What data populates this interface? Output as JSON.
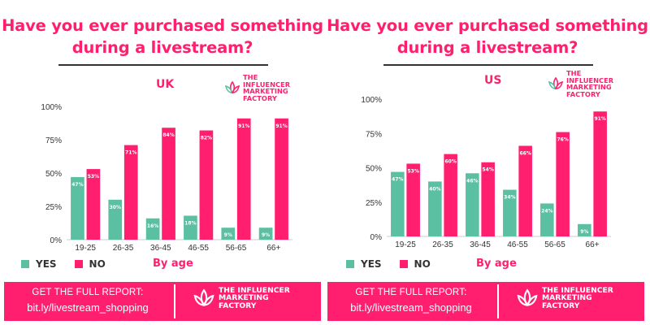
{
  "colors": {
    "yes": "#5bbfa1",
    "no": "#ff1f6e",
    "accent": "#ff1f6e",
    "axis": "#cccccc",
    "text": "#333333"
  },
  "brand": {
    "name": "THE INFLUENCER MARKETING FACTORY",
    "icon": "lotus-logo-icon"
  },
  "legend": {
    "yes": "YES",
    "no": "NO",
    "by_age": "By age"
  },
  "footer": {
    "cta": "GET THE FULL REPORT:",
    "link": "bit.ly/livestream_shopping"
  },
  "chart_data": [
    {
      "type": "bar",
      "title": "Have you ever purchased something during a livestream?",
      "subtitle": "UK",
      "categories": [
        "19-25",
        "26-35",
        "36-45",
        "46-55",
        "56-65",
        "66+"
      ],
      "series": [
        {
          "name": "YES",
          "values": [
            47,
            30,
            16,
            18,
            9,
            9
          ]
        },
        {
          "name": "NO",
          "values": [
            53,
            71,
            84,
            82,
            91,
            91
          ]
        }
      ],
      "value_labels": {
        "YES": [
          "47%",
          "30%",
          "16%",
          "18%",
          "9%",
          "9%"
        ],
        "NO": [
          "53%",
          "71%",
          "84%",
          "82%",
          "91%",
          "91%"
        ]
      },
      "yticks": [
        "0%",
        "25%",
        "50%",
        "75%",
        "100%"
      ],
      "ylim": [
        0,
        100
      ],
      "xlabel": "By age",
      "grid": false,
      "legend_position": "bottom-left"
    },
    {
      "type": "bar",
      "title": "Have you ever purchased something during a livestream?",
      "subtitle": "US",
      "categories": [
        "19-25",
        "26-35",
        "36-45",
        "46-55",
        "56-65",
        "66+"
      ],
      "series": [
        {
          "name": "YES",
          "values": [
            47,
            40,
            46,
            34,
            24,
            9
          ]
        },
        {
          "name": "NO",
          "values": [
            53,
            60,
            54,
            66,
            76,
            91
          ]
        }
      ],
      "value_labels": {
        "YES": [
          "47%",
          "40%",
          "46%",
          "34%",
          "24%",
          "9%"
        ],
        "NO": [
          "53%",
          "60%",
          "54%",
          "66%",
          "76%",
          "91%"
        ]
      },
      "yticks": [
        "0%",
        "25%",
        "50%",
        "75%",
        "100%"
      ],
      "ylim": [
        0,
        100
      ],
      "xlabel": "By age",
      "grid": false,
      "legend_position": "bottom-left"
    }
  ]
}
